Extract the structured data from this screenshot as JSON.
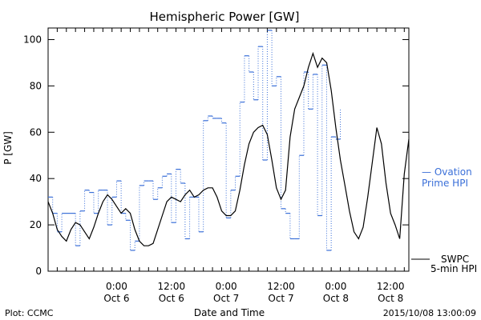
{
  "chart_data": {
    "type": "line",
    "title": "Hemispheric Power [GW]",
    "xlabel": "Date and Time",
    "ylabel": "P [GW]",
    "ylim": [
      0,
      105
    ],
    "xlim_hours": [
      -15,
      64
    ],
    "y_ticks": [
      0,
      20,
      40,
      60,
      80,
      100
    ],
    "y_ticks_labels": [
      "0",
      "20",
      "40",
      "60",
      "80",
      "100"
    ],
    "x_ticks": [
      {
        "x": 0,
        "line1": "0:00",
        "line2": "Oct 6"
      },
      {
        "x": 12,
        "line1": "12:00",
        "line2": "Oct 6"
      },
      {
        "x": 24,
        "line1": "0:00",
        "line2": "Oct 7"
      },
      {
        "x": 36,
        "line1": "12:00",
        "line2": "Oct 7"
      },
      {
        "x": 48,
        "line1": "0:00",
        "line2": "Oct 8"
      },
      {
        "x": 60,
        "line1": "12:00",
        "line2": "Oct 8"
      }
    ],
    "grid": false,
    "series": [
      {
        "name": "SWPC 5-min HPI",
        "color": "#000000",
        "style": "solid",
        "points": [
          [
            -15,
            30
          ],
          [
            -14,
            25
          ],
          [
            -13,
            18
          ],
          [
            -12,
            15
          ],
          [
            -11,
            13
          ],
          [
            -10,
            18
          ],
          [
            -9,
            21
          ],
          [
            -8,
            20
          ],
          [
            -7,
            17
          ],
          [
            -6,
            14
          ],
          [
            -5,
            19
          ],
          [
            -4,
            25
          ],
          [
            -3,
            30
          ],
          [
            -2,
            33
          ],
          [
            -1,
            31
          ],
          [
            0,
            28
          ],
          [
            1,
            25
          ],
          [
            2,
            27
          ],
          [
            3,
            25
          ],
          [
            4,
            18
          ],
          [
            5,
            13
          ],
          [
            6,
            11
          ],
          [
            7,
            11
          ],
          [
            8,
            12
          ],
          [
            9,
            18
          ],
          [
            10,
            24
          ],
          [
            11,
            30
          ],
          [
            12,
            32
          ],
          [
            13,
            31
          ],
          [
            14,
            30
          ],
          [
            15,
            33
          ],
          [
            16,
            35
          ],
          [
            17,
            32
          ],
          [
            18,
            33
          ],
          [
            19,
            35
          ],
          [
            20,
            36
          ],
          [
            21,
            36
          ],
          [
            22,
            32
          ],
          [
            23,
            26
          ],
          [
            24,
            24
          ],
          [
            25,
            24
          ],
          [
            26,
            26
          ],
          [
            27,
            35
          ],
          [
            28,
            46
          ],
          [
            29,
            55
          ],
          [
            30,
            60
          ],
          [
            31,
            62
          ],
          [
            32,
            63
          ],
          [
            33,
            59
          ],
          [
            34,
            48
          ],
          [
            35,
            36
          ],
          [
            36,
            31
          ],
          [
            37,
            35
          ],
          [
            38,
            58
          ],
          [
            39,
            70
          ],
          [
            40,
            75
          ],
          [
            41,
            80
          ],
          [
            42,
            88
          ],
          [
            43,
            94
          ],
          [
            44,
            88
          ],
          [
            45,
            92
          ],
          [
            46,
            90
          ],
          [
            47,
            78
          ],
          [
            48,
            62
          ],
          [
            49,
            48
          ],
          [
            50,
            37
          ],
          [
            51,
            26
          ],
          [
            52,
            17
          ],
          [
            53,
            14
          ],
          [
            54,
            19
          ],
          [
            55,
            32
          ],
          [
            56,
            47
          ],
          [
            57,
            62
          ],
          [
            58,
            55
          ],
          [
            59,
            38
          ],
          [
            60,
            25
          ],
          [
            61,
            20
          ],
          [
            62,
            14
          ],
          [
            63,
            42
          ],
          [
            64,
            57
          ]
        ]
      },
      {
        "name": "Ovation Prime HPI",
        "color": "#3a6fd8",
        "style": "dotted-step",
        "points": [
          [
            -15,
            32
          ],
          [
            -14,
            25
          ],
          [
            -13,
            17
          ],
          [
            -12,
            25
          ],
          [
            -10,
            25
          ],
          [
            -9,
            11
          ],
          [
            -8,
            26
          ],
          [
            -7,
            35
          ],
          [
            -6,
            34
          ],
          [
            -5,
            25
          ],
          [
            -4,
            35
          ],
          [
            -3,
            35
          ],
          [
            -2,
            20
          ],
          [
            -1,
            32
          ],
          [
            0,
            39
          ],
          [
            1,
            25
          ],
          [
            2,
            22
          ],
          [
            3,
            9
          ],
          [
            4,
            13
          ],
          [
            5,
            37
          ],
          [
            6,
            39
          ],
          [
            7,
            39
          ],
          [
            8,
            31
          ],
          [
            9,
            36
          ],
          [
            10,
            41
          ],
          [
            11,
            42
          ],
          [
            12,
            21
          ],
          [
            13,
            44
          ],
          [
            14,
            38
          ],
          [
            15,
            14
          ],
          [
            16,
            32
          ],
          [
            17,
            32
          ],
          [
            18,
            17
          ],
          [
            19,
            65
          ],
          [
            20,
            67
          ],
          [
            21,
            66
          ],
          [
            22,
            66
          ],
          [
            23,
            64
          ],
          [
            24,
            23
          ],
          [
            25,
            35
          ],
          [
            26,
            41
          ],
          [
            27,
            73
          ],
          [
            28,
            93
          ],
          [
            29,
            86
          ],
          [
            30,
            74
          ],
          [
            31,
            97
          ],
          [
            32,
            48
          ],
          [
            33,
            104
          ],
          [
            34,
            80
          ],
          [
            35,
            84
          ],
          [
            36,
            27
          ],
          [
            37,
            25
          ],
          [
            38,
            14
          ],
          [
            39,
            14
          ],
          [
            40,
            50
          ],
          [
            41,
            86
          ],
          [
            42,
            70
          ],
          [
            43,
            85
          ],
          [
            44,
            24
          ],
          [
            45,
            89
          ],
          [
            46,
            9
          ],
          [
            47,
            58
          ],
          [
            48,
            57
          ],
          [
            49,
            70
          ]
        ]
      }
    ],
    "legend": [
      {
        "label": "— Ovation",
        "label2": "Prime HPI",
        "color": "#3a6fd8"
      },
      {
        "label": "SWPC",
        "label2": "5-min HPI",
        "color": "#000000"
      }
    ]
  },
  "footer": {
    "plot_label": "Plot: CCMC",
    "timestamp": "2015/10/08 13:00:09"
  }
}
